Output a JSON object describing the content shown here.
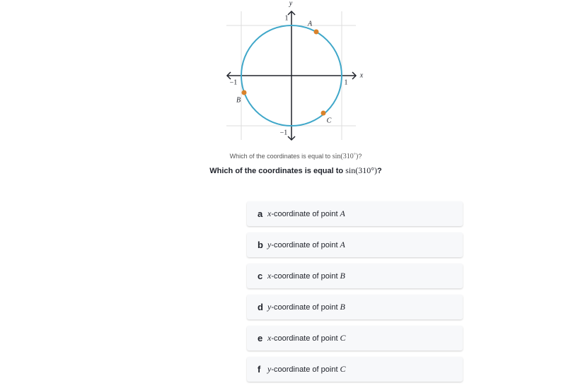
{
  "figure": {
    "axis_labels": {
      "y": "y",
      "x": "x"
    },
    "ticks": {
      "y_top": "1",
      "x_left": "−1",
      "x_right": "1",
      "y_bottom": "−1"
    },
    "points": [
      {
        "label": "A"
      },
      {
        "label": "B"
      },
      {
        "label": "C"
      }
    ]
  },
  "caption": {
    "text": "Which of the coordinates is equal to",
    "math": "sin(310˚)",
    "end": "?"
  },
  "question": {
    "text": "Which of the coordinates is equal to",
    "math": "sin(310°)",
    "end": "?"
  },
  "options": [
    {
      "letter": "a",
      "variable": "x",
      "text": "-coordinate of point",
      "point": "A"
    },
    {
      "letter": "b",
      "variable": "y",
      "text": "-coordinate of point",
      "point": "A"
    },
    {
      "letter": "c",
      "variable": "x",
      "text": "-coordinate of point",
      "point": "B"
    },
    {
      "letter": "d",
      "variable": "y",
      "text": "-coordinate of point",
      "point": "B"
    },
    {
      "letter": "e",
      "variable": "x",
      "text": "-coordinate of point",
      "point": "C"
    },
    {
      "letter": "f",
      "variable": "y",
      "text": "-coordinate of point",
      "point": "C"
    }
  ]
}
